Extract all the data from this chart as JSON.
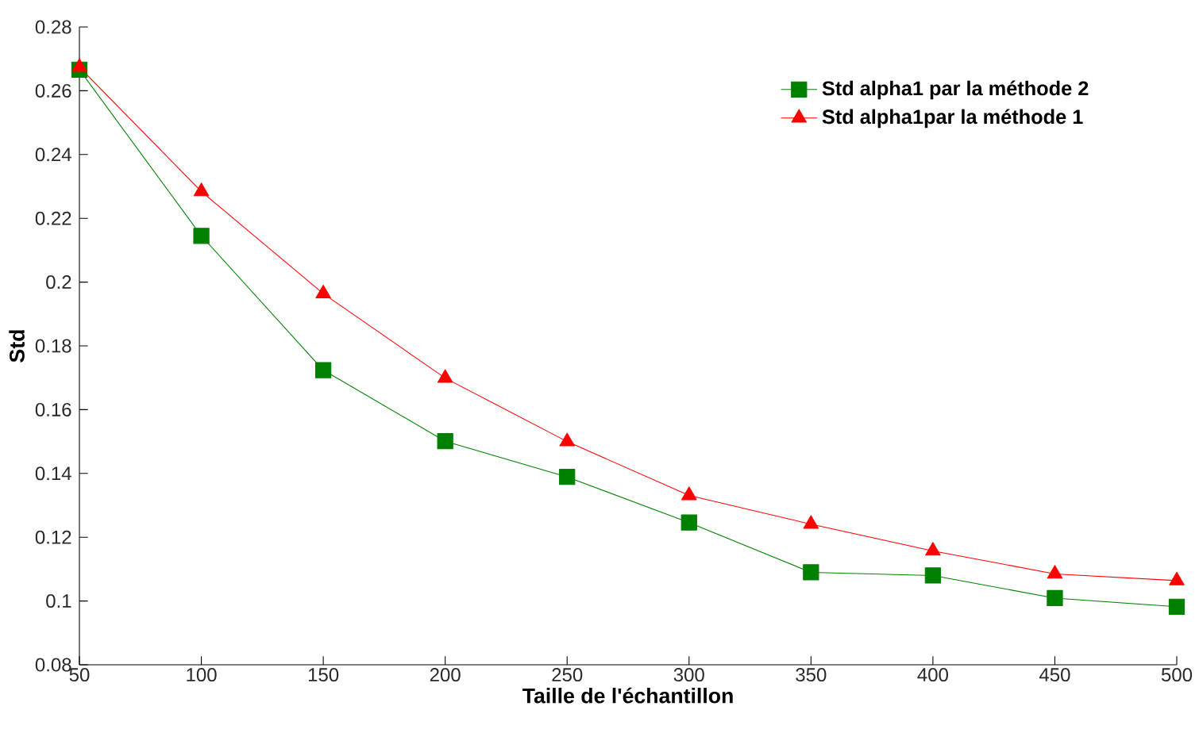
{
  "chart_data": {
    "type": "line",
    "xlabel": "Taille de l'échantillon",
    "ylabel": "Std",
    "x": [
      50,
      100,
      150,
      200,
      250,
      300,
      350,
      400,
      450,
      500
    ],
    "series": [
      {
        "name": "Std alpha1 par la méthode 2",
        "color": "#008000",
        "marker": "square",
        "values": [
          0.2666,
          0.2145,
          0.1724,
          0.1501,
          0.1389,
          0.1246,
          0.109,
          0.108,
          0.1009,
          0.0982
        ]
      },
      {
        "name": "Std alpha1par la méthode 1",
        "color": "#ff0000",
        "marker": "triangle",
        "values": [
          0.2674,
          0.2284,
          0.1964,
          0.1699,
          0.15,
          0.1331,
          0.1241,
          0.1157,
          0.1085,
          0.1064
        ]
      }
    ],
    "xlim": [
      50,
      500
    ],
    "xticks": [
      50,
      100,
      150,
      200,
      250,
      300,
      350,
      400,
      450,
      500
    ],
    "ylim": [
      0.08,
      0.28
    ],
    "yticks": [
      0.08,
      0.1,
      0.12,
      0.14,
      0.16,
      0.18,
      0.2,
      0.22,
      0.24,
      0.26,
      0.28
    ],
    "grid": false,
    "legend": "top right"
  }
}
